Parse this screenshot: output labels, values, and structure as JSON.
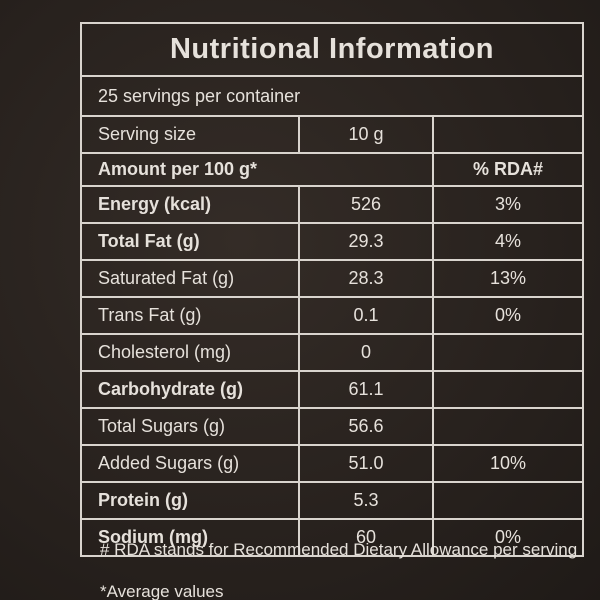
{
  "header": {
    "title": "Nutritional Information",
    "servings": "25 servings per container"
  },
  "serving": {
    "label": "Serving size",
    "value": "10 g"
  },
  "table": {
    "columns": [
      "Amount per 100 g*",
      "% RDA#"
    ],
    "rows": [
      [
        "Energy (kcal)",
        "526",
        "3%"
      ],
      [
        "Total Fat (g)",
        "29.3",
        "4%"
      ],
      [
        "Saturated Fat (g)",
        "28.3",
        "13%"
      ],
      [
        "Trans Fat (g)",
        "0.1",
        "0%"
      ],
      [
        "Cholesterol (mg)",
        "0"
      ],
      [
        "Carbohydrate (g)",
        "61.1"
      ],
      [
        "Total Sugars (g)",
        "56.6"
      ],
      [
        "Added Sugars (g)",
        "51.0",
        "10%"
      ],
      [
        "Protein (g)",
        "5.3"
      ],
      [
        "Sodium (mg)",
        "60",
        "0%"
      ]
    ]
  },
  "footnotes": [
    "# RDA stands for Recommended Dietary Allowance per serving",
    "*Average values"
  ]
}
